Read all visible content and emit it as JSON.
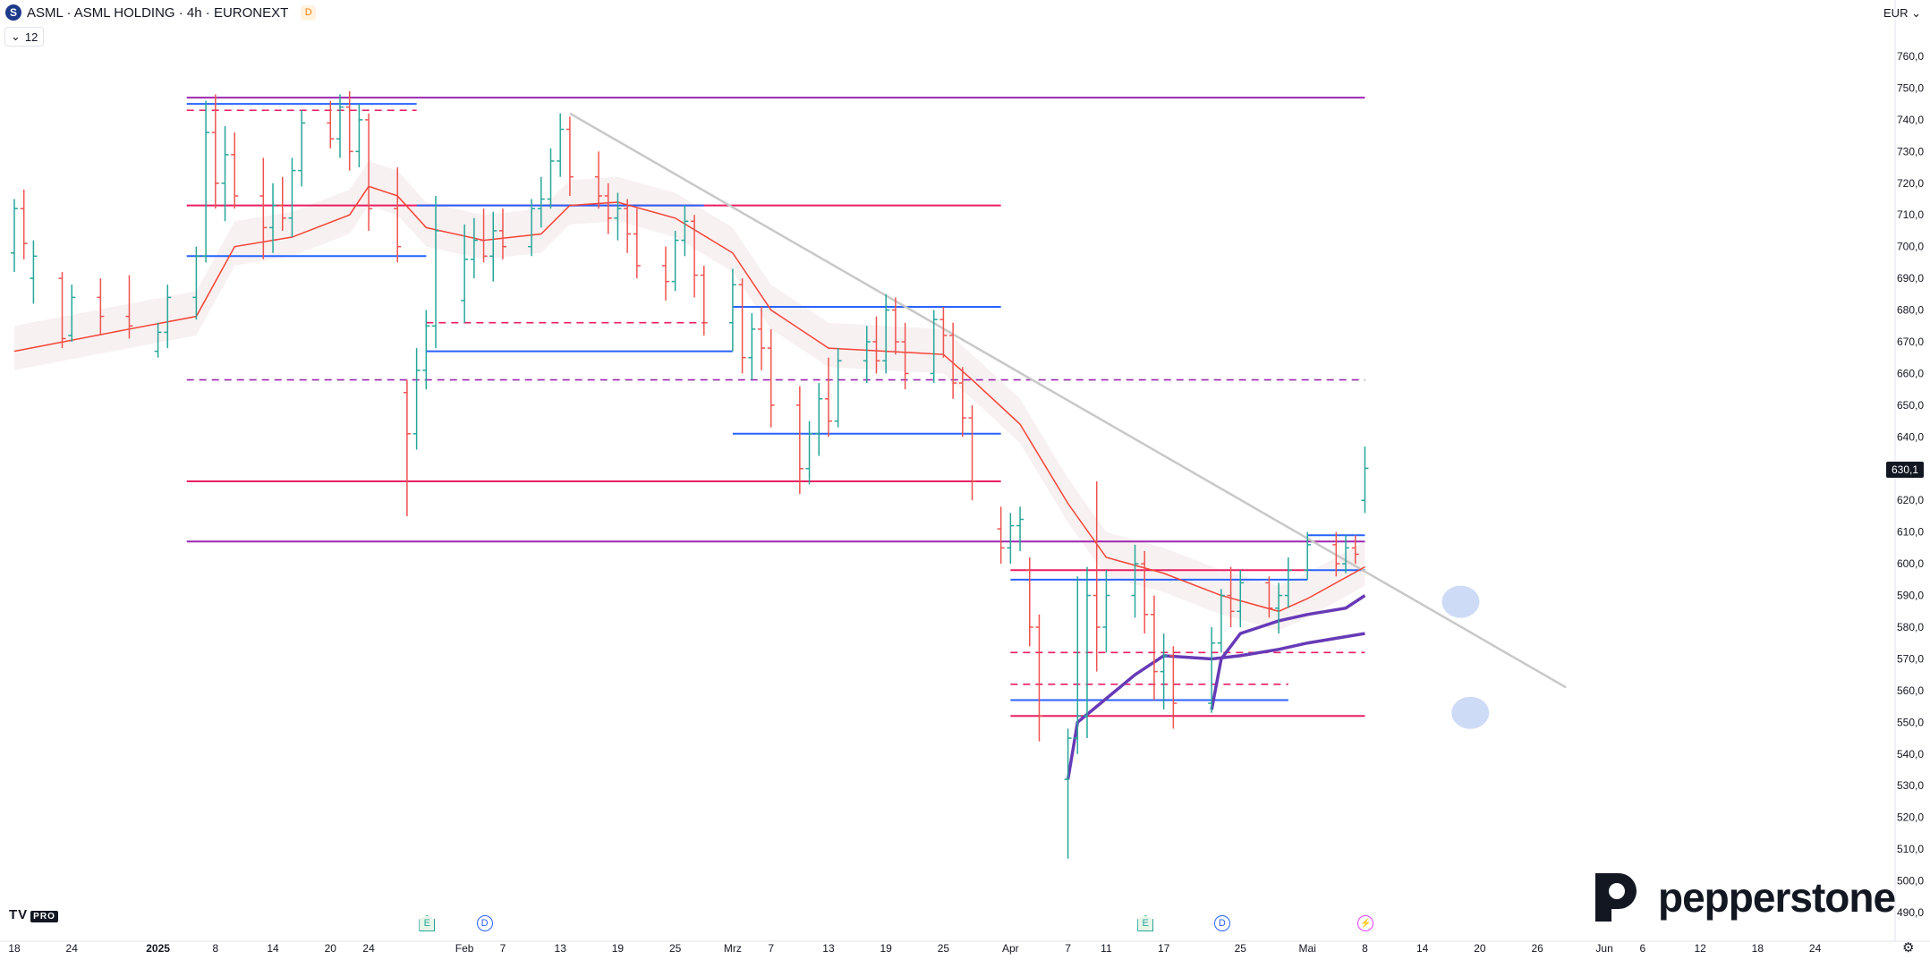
{
  "header": {
    "symbol_letter": "S",
    "title": "ASML · ASML HOLDING · 4h · EURONEXT",
    "badge": "D",
    "collapse_count": "12",
    "currency": "EUR"
  },
  "branding": {
    "tv_logo": "TV",
    "tv_pro": "PRO",
    "pepperstone": "pepperstone"
  },
  "last_price_label": "630,1",
  "colors": {
    "bull": "#26a69a",
    "bear": "#ef5350",
    "blue_level": "#2962ff",
    "pink_level": "#e91e63",
    "purple_level": "#9c27b0",
    "ma_red": "#f44336",
    "vwap_purple": "#673ab7",
    "trend_grey": "#c8c8c8",
    "cloud": "#f3e5e5"
  },
  "events": [
    {
      "type": "E",
      "x": "2025-01-30"
    },
    {
      "type": "D",
      "x": "2025-02-05"
    },
    {
      "type": "E",
      "x": "2025-04-15"
    },
    {
      "type": "D",
      "x": "2025-04-23"
    },
    {
      "type": "flash",
      "x": "2025-05-08"
    }
  ],
  "chart_data": {
    "type": "candlestick",
    "title": "ASML · ASML HOLDING · 4h · EURONEXT",
    "xlabel": "",
    "ylabel": "",
    "ylim": [
      486,
      772
    ],
    "xlim": [
      "2024-12-18",
      "2025-06-26"
    ],
    "y_ticks": [
      490,
      500,
      510,
      520,
      530,
      540,
      550,
      560,
      570,
      580,
      590,
      600,
      610,
      620,
      630,
      640,
      650,
      660,
      670,
      680,
      690,
      700,
      710,
      720,
      730,
      740,
      750,
      760
    ],
    "x_ticks": [
      {
        "date": "2024-12-18",
        "label": "18"
      },
      {
        "date": "2024-12-24",
        "label": "24"
      },
      {
        "date": "2025-01-02",
        "label": "2025"
      },
      {
        "date": "2025-01-08",
        "label": "8"
      },
      {
        "date": "2025-01-14",
        "label": "14"
      },
      {
        "date": "2025-01-20",
        "label": "20"
      },
      {
        "date": "2025-01-24",
        "label": "24"
      },
      {
        "date": "2025-02-03",
        "label": "Feb"
      },
      {
        "date": "2025-02-07",
        "label": "7"
      },
      {
        "date": "2025-02-13",
        "label": "13"
      },
      {
        "date": "2025-02-19",
        "label": "19"
      },
      {
        "date": "2025-02-25",
        "label": "25"
      },
      {
        "date": "2025-03-03",
        "label": "Mrz"
      },
      {
        "date": "2025-03-07",
        "label": "7"
      },
      {
        "date": "2025-03-13",
        "label": "13"
      },
      {
        "date": "2025-03-19",
        "label": "19"
      },
      {
        "date": "2025-03-25",
        "label": "25"
      },
      {
        "date": "2025-04-01",
        "label": "Apr"
      },
      {
        "date": "2025-04-07",
        "label": "7"
      },
      {
        "date": "2025-04-11",
        "label": "11"
      },
      {
        "date": "2025-04-17",
        "label": "17"
      },
      {
        "date": "2025-04-25",
        "label": "25"
      },
      {
        "date": "2025-05-02",
        "label": "Mai"
      },
      {
        "date": "2025-05-08",
        "label": "8"
      },
      {
        "date": "2025-05-14",
        "label": "14"
      },
      {
        "date": "2025-05-20",
        "label": "20"
      },
      {
        "date": "2025-05-26",
        "label": "26"
      },
      {
        "date": "2025-06-02",
        "label": "Jun"
      },
      {
        "date": "2025-06-06",
        "label": "6"
      },
      {
        "date": "2025-06-12",
        "label": "12"
      },
      {
        "date": "2025-06-18",
        "label": "18"
      },
      {
        "date": "2025-06-24",
        "label": "24"
      }
    ],
    "last_price": 630.1,
    "candles": [
      [
        "2024-12-18",
        698,
        715,
        692,
        712
      ],
      [
        "2024-12-19",
        712,
        718,
        696,
        701
      ],
      [
        "2024-12-20",
        690,
        702,
        682,
        697
      ],
      [
        "2024-12-23",
        690,
        692,
        668,
        671
      ],
      [
        "2024-12-24",
        672,
        688,
        670,
        684
      ],
      [
        "2024-12-27",
        684,
        690,
        672,
        678
      ],
      [
        "2024-12-30",
        678,
        691,
        671,
        675
      ],
      [
        "2025-01-02",
        667,
        676,
        665,
        673
      ],
      [
        "2025-01-03",
        673,
        688,
        668,
        684
      ],
      [
        "2025-01-06",
        684,
        700,
        677,
        697
      ],
      [
        "2025-01-07",
        697,
        746,
        695,
        736
      ],
      [
        "2025-01-08",
        736,
        748,
        712,
        720
      ],
      [
        "2025-01-09",
        720,
        738,
        708,
        729
      ],
      [
        "2025-01-10",
        729,
        736,
        712,
        716
      ],
      [
        "2025-01-13",
        716,
        728,
        696,
        706
      ],
      [
        "2025-01-14",
        706,
        720,
        698,
        713
      ],
      [
        "2025-01-15",
        713,
        722,
        705,
        709
      ],
      [
        "2025-01-16",
        709,
        728,
        703,
        724
      ],
      [
        "2025-01-17",
        724,
        743,
        719,
        739
      ],
      [
        "2025-01-20",
        739,
        746,
        731,
        734
      ],
      [
        "2025-01-21",
        734,
        748,
        728,
        744
      ],
      [
        "2025-01-22",
        744,
        749,
        724,
        730
      ],
      [
        "2025-01-23",
        730,
        745,
        725,
        740
      ],
      [
        "2025-01-24",
        740,
        742,
        705,
        712
      ],
      [
        "2025-01-27",
        712,
        725,
        695,
        700
      ],
      [
        "2025-01-28",
        654,
        658,
        615,
        641
      ],
      [
        "2025-01-29",
        641,
        668,
        636,
        661
      ],
      [
        "2025-01-30",
        661,
        680,
        655,
        675
      ],
      [
        "2025-01-31",
        675,
        716,
        668,
        705
      ],
      [
        "2025-02-03",
        683,
        707,
        676,
        696
      ],
      [
        "2025-02-04",
        696,
        709,
        690,
        702
      ],
      [
        "2025-02-05",
        702,
        712,
        695,
        697
      ],
      [
        "2025-02-06",
        697,
        711,
        689,
        705
      ],
      [
        "2025-02-07",
        705,
        712,
        696,
        700
      ],
      [
        "2025-02-10",
        700,
        715,
        697,
        712
      ],
      [
        "2025-02-11",
        712,
        722,
        706,
        715
      ],
      [
        "2025-02-12",
        715,
        731,
        712,
        727
      ],
      [
        "2025-02-13",
        727,
        742,
        722,
        737
      ],
      [
        "2025-02-14",
        737,
        741,
        716,
        722
      ],
      [
        "2025-02-17",
        722,
        730,
        712,
        716
      ],
      [
        "2025-02-18",
        716,
        720,
        704,
        709
      ],
      [
        "2025-02-19",
        709,
        717,
        702,
        712
      ],
      [
        "2025-02-20",
        712,
        715,
        698,
        704
      ],
      [
        "2025-02-21",
        704,
        712,
        690,
        694
      ],
      [
        "2025-02-24",
        694,
        700,
        683,
        689
      ],
      [
        "2025-02-25",
        689,
        705,
        686,
        702
      ],
      [
        "2025-02-26",
        702,
        713,
        697,
        708
      ],
      [
        "2025-02-27",
        708,
        710,
        684,
        691
      ],
      [
        "2025-02-28",
        691,
        694,
        672,
        676
      ],
      [
        "2025-03-03",
        676,
        693,
        667,
        688
      ],
      [
        "2025-03-04",
        688,
        690,
        660,
        665
      ],
      [
        "2025-03-05",
        665,
        679,
        658,
        674
      ],
      [
        "2025-03-06",
        674,
        681,
        661,
        668
      ],
      [
        "2025-03-07",
        668,
        674,
        643,
        650
      ],
      [
        "2025-03-10",
        650,
        656,
        622,
        630
      ],
      [
        "2025-03-11",
        630,
        645,
        625,
        641
      ],
      [
        "2025-03-12",
        641,
        657,
        634,
        652
      ],
      [
        "2025-03-13",
        652,
        665,
        640,
        645
      ],
      [
        "2025-03-14",
        645,
        668,
        643,
        664
      ],
      [
        "2025-03-17",
        664,
        675,
        657,
        670
      ],
      [
        "2025-03-18",
        670,
        678,
        660,
        664
      ],
      [
        "2025-03-19",
        664,
        685,
        660,
        680
      ],
      [
        "2025-03-20",
        680,
        684,
        666,
        670
      ],
      [
        "2025-03-21",
        670,
        676,
        655,
        660
      ],
      [
        "2025-03-24",
        660,
        680,
        657,
        677
      ],
      [
        "2025-03-25",
        677,
        681,
        665,
        672
      ],
      [
        "2025-03-26",
        672,
        676,
        652,
        657
      ],
      [
        "2025-03-27",
        657,
        662,
        640,
        646
      ],
      [
        "2025-03-28",
        646,
        650,
        620,
        626
      ],
      [
        "2025-03-31",
        611,
        618,
        600,
        605
      ],
      [
        "2025-04-01",
        605,
        616,
        600,
        612
      ],
      [
        "2025-04-02",
        612,
        618,
        604,
        614
      ],
      [
        "2025-04-03",
        598,
        602,
        574,
        580
      ],
      [
        "2025-04-04",
        580,
        584,
        544,
        552
      ],
      [
        "2025-04-07",
        532,
        548,
        507,
        545
      ],
      [
        "2025-04-08",
        545,
        596,
        540,
        552
      ],
      [
        "2025-04-09",
        552,
        599,
        545,
        590
      ],
      [
        "2025-04-10",
        590,
        626,
        566,
        580
      ],
      [
        "2025-04-11",
        580,
        598,
        572,
        590
      ],
      [
        "2025-04-14",
        590,
        606,
        583,
        600
      ],
      [
        "2025-04-15",
        600,
        604,
        578,
        584
      ],
      [
        "2025-04-16",
        584,
        590,
        557,
        566
      ],
      [
        "2025-04-17",
        566,
        578,
        554,
        571
      ],
      [
        "2025-04-18",
        571,
        574,
        548,
        556
      ],
      [
        "2025-04-22",
        556,
        580,
        553,
        575
      ],
      [
        "2025-04-23",
        575,
        592,
        572,
        590
      ],
      [
        "2025-04-24",
        590,
        599,
        580,
        585
      ],
      [
        "2025-04-25",
        585,
        598,
        580,
        594
      ],
      [
        "2025-04-28",
        594,
        596,
        583,
        586
      ],
      [
        "2025-04-29",
        586,
        594,
        578,
        590
      ],
      [
        "2025-04-30",
        590,
        602,
        586,
        598
      ],
      [
        "2025-05-02",
        598,
        610,
        595,
        606
      ],
      [
        "2025-05-05",
        606,
        610,
        596,
        600
      ],
      [
        "2025-05-06",
        600,
        609,
        597,
        605
      ],
      [
        "2025-05-07",
        605,
        609,
        600,
        603
      ],
      [
        "2025-05-08",
        620,
        637,
        616,
        630.1
      ]
    ],
    "horizontal_levels": [
      {
        "price": 747,
        "from": "2025-01-05",
        "to": "2025-05-08",
        "color": "purple",
        "style": "solid"
      },
      {
        "price": 745,
        "from": "2025-01-05",
        "to": "2025-01-29",
        "color": "blue",
        "style": "solid"
      },
      {
        "price": 743,
        "from": "2025-01-05",
        "to": "2025-01-29",
        "color": "pink",
        "style": "dashed"
      },
      {
        "price": 713,
        "from": "2025-01-05",
        "to": "2025-03-31",
        "color": "pink",
        "style": "solid"
      },
      {
        "price": 713,
        "from": "2025-01-29",
        "to": "2025-02-28",
        "color": "blue",
        "style": "solid"
      },
      {
        "price": 697,
        "from": "2025-01-05",
        "to": "2025-01-30",
        "color": "blue",
        "style": "solid"
      },
      {
        "price": 681,
        "from": "2025-03-03",
        "to": "2025-03-31",
        "color": "blue",
        "style": "solid"
      },
      {
        "price": 676,
        "from": "2025-01-30",
        "to": "2025-02-28",
        "color": "pink",
        "style": "dashed"
      },
      {
        "price": 667,
        "from": "2025-01-30",
        "to": "2025-03-03",
        "color": "blue",
        "style": "solid"
      },
      {
        "price": 658,
        "from": "2025-01-05",
        "to": "2025-05-08",
        "color": "purple",
        "style": "dashed"
      },
      {
        "price": 641,
        "from": "2025-03-03",
        "to": "2025-03-31",
        "color": "blue",
        "style": "solid"
      },
      {
        "price": 626,
        "from": "2025-01-05",
        "to": "2025-03-31",
        "color": "pink",
        "style": "solid"
      },
      {
        "price": 607,
        "from": "2025-01-05",
        "to": "2025-05-08",
        "color": "purple",
        "style": "solid"
      },
      {
        "price": 609,
        "from": "2025-05-02",
        "to": "2025-05-08",
        "color": "blue",
        "style": "solid"
      },
      {
        "price": 598,
        "from": "2025-05-02",
        "to": "2025-05-08",
        "color": "blue",
        "style": "solid"
      },
      {
        "price": 598,
        "from": "2025-04-01",
        "to": "2025-05-02",
        "color": "pink",
        "style": "solid"
      },
      {
        "price": 595,
        "from": "2025-04-01",
        "to": "2025-05-02",
        "color": "blue",
        "style": "solid"
      },
      {
        "price": 572,
        "from": "2025-04-01",
        "to": "2025-05-08",
        "color": "pink",
        "style": "dashed"
      },
      {
        "price": 562,
        "from": "2025-04-01",
        "to": "2025-04-30",
        "color": "pink",
        "style": "dashed"
      },
      {
        "price": 557,
        "from": "2025-04-01",
        "to": "2025-04-30",
        "color": "blue",
        "style": "solid"
      },
      {
        "price": 552,
        "from": "2025-04-01",
        "to": "2025-05-08",
        "color": "pink",
        "style": "solid"
      }
    ],
    "trendline": {
      "from": [
        "2025-02-14",
        742
      ],
      "to": [
        "2025-05-29",
        561
      ]
    },
    "ma_red": [
      [
        "2024-12-18",
        667
      ],
      [
        "2024-12-30",
        674
      ],
      [
        "2025-01-06",
        678
      ],
      [
        "2025-01-10",
        700
      ],
      [
        "2025-01-16",
        703
      ],
      [
        "2025-01-22",
        710
      ],
      [
        "2025-01-24",
        719
      ],
      [
        "2025-01-27",
        716
      ],
      [
        "2025-01-30",
        706
      ],
      [
        "2025-02-05",
        702
      ],
      [
        "2025-02-11",
        704
      ],
      [
        "2025-02-14",
        713
      ],
      [
        "2025-02-19",
        714
      ],
      [
        "2025-02-25",
        709
      ],
      [
        "2025-03-03",
        698
      ],
      [
        "2025-03-07",
        680
      ],
      [
        "2025-03-13",
        668
      ],
      [
        "2025-03-19",
        667
      ],
      [
        "2025-03-25",
        666
      ],
      [
        "2025-03-28",
        658
      ],
      [
        "2025-04-02",
        644
      ],
      [
        "2025-04-07",
        619
      ],
      [
        "2025-04-11",
        602
      ],
      [
        "2025-04-17",
        597
      ],
      [
        "2025-04-23",
        590
      ],
      [
        "2025-04-29",
        585
      ],
      [
        "2025-05-02",
        589
      ],
      [
        "2025-05-08",
        599
      ]
    ],
    "vwap_1": [
      [
        "2025-04-07",
        532
      ],
      [
        "2025-04-08",
        550
      ],
      [
        "2025-04-10",
        555
      ],
      [
        "2025-04-14",
        565
      ],
      [
        "2025-04-17",
        571
      ],
      [
        "2025-04-22",
        570
      ],
      [
        "2025-04-25",
        571
      ],
      [
        "2025-04-29",
        573
      ],
      [
        "2025-05-02",
        575
      ],
      [
        "2025-05-06",
        577
      ],
      [
        "2025-05-08",
        578
      ]
    ],
    "vwap_2": [
      [
        "2025-04-22",
        554
      ],
      [
        "2025-04-23",
        570
      ],
      [
        "2025-04-25",
        578
      ],
      [
        "2025-04-29",
        582
      ],
      [
        "2025-05-02",
        584
      ],
      [
        "2025-05-06",
        586
      ],
      [
        "2025-05-08",
        590
      ]
    ],
    "markers": [
      {
        "date": "2025-05-18",
        "price": 588
      },
      {
        "date": "2025-05-19",
        "price": 553
      }
    ]
  }
}
